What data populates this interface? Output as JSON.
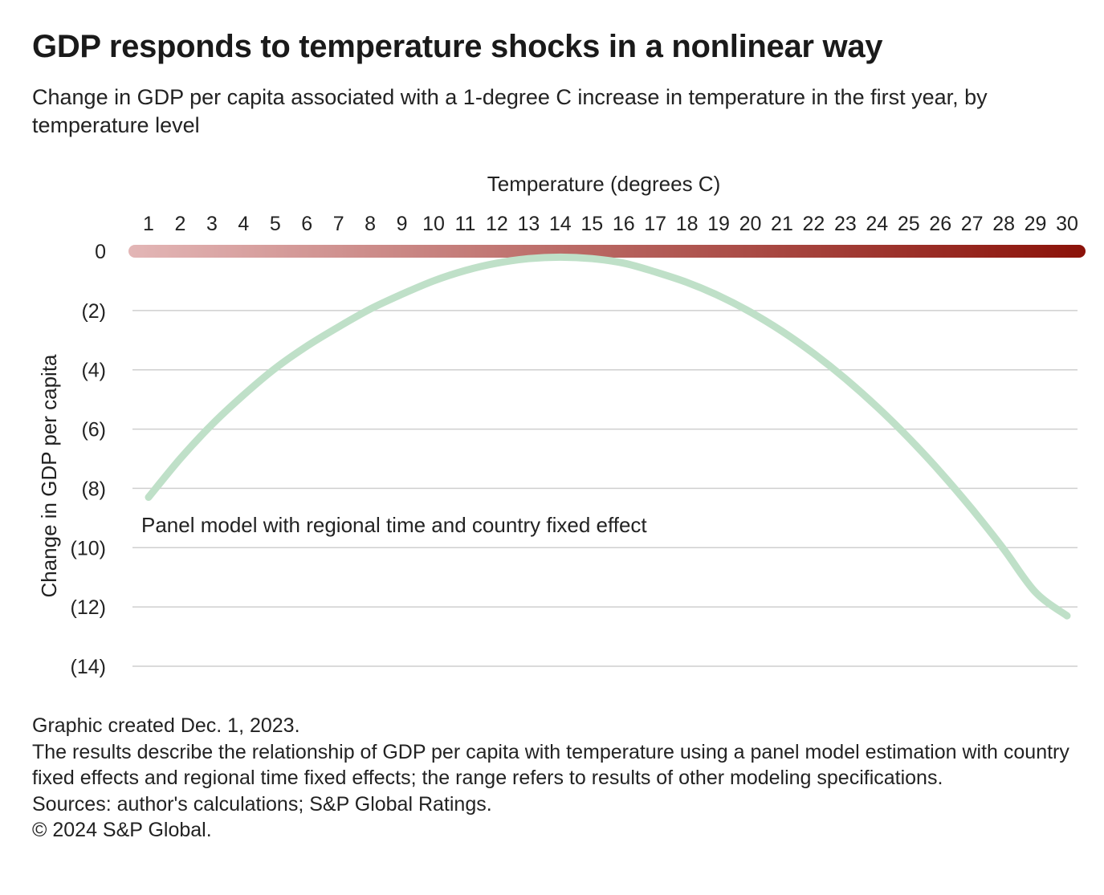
{
  "title": "GDP responds to temperature shocks in a nonlinear way",
  "subtitle": "Change in GDP per capita associated with a 1-degree C increase in temperature in the first year, by temperature level",
  "chart_data": {
    "type": "line",
    "title": "GDP responds to temperature shocks in a nonlinear way",
    "subtitle": "Change in GDP per capita associated with a 1-degree C increase in temperature in the first year, by temperature level",
    "xlabel": "Temperature (degrees C)",
    "ylabel": "Change in GDP per capita",
    "x_ticks": [
      1,
      2,
      3,
      4,
      5,
      6,
      7,
      8,
      9,
      10,
      11,
      12,
      13,
      14,
      15,
      16,
      17,
      18,
      19,
      20,
      21,
      22,
      23,
      24,
      25,
      26,
      27,
      28,
      29,
      30
    ],
    "xlim": [
      1,
      30
    ],
    "y_ticks": [
      0,
      -2,
      -4,
      -6,
      -8,
      -10,
      -12,
      -14
    ],
    "y_tick_labels": [
      "0",
      "(2)",
      "(4)",
      "(6)",
      "(8)",
      "(10)",
      "(12)",
      "(14)"
    ],
    "ylim": [
      -14,
      0
    ],
    "x_axis_position": "top",
    "grid": true,
    "temperature_scale_colors": [
      "#e3b6b6",
      "#8b1209"
    ],
    "series": [
      {
        "name": "Panel model with regional time and country fixed effect",
        "color": "#bfe0c8",
        "x": [
          1,
          2,
          3,
          4,
          5,
          6,
          7,
          8,
          9,
          10,
          11,
          12,
          13,
          14,
          15,
          16,
          17,
          18,
          19,
          20,
          21,
          22,
          23,
          24,
          25,
          26,
          27,
          28,
          29,
          30
        ],
        "y": [
          -8.3,
          -7.0,
          -5.85,
          -4.85,
          -3.95,
          -3.2,
          -2.55,
          -1.95,
          -1.45,
          -1.0,
          -0.65,
          -0.4,
          -0.25,
          -0.2,
          -0.25,
          -0.4,
          -0.7,
          -1.05,
          -1.5,
          -2.05,
          -2.7,
          -3.45,
          -4.3,
          -5.25,
          -6.3,
          -7.45,
          -8.7,
          -10.05,
          -11.5,
          -12.3
        ]
      }
    ]
  },
  "footer": {
    "created": "Graphic created Dec. 1, 2023.",
    "note": "The results describe the relationship of GDP per capita with temperature using a panel model estimation with country fixed effects and regional time fixed effects; the range refers to results of other modeling specifications.",
    "sources": "Sources: author's calculations; S&P Global Ratings.",
    "copyright": "© 2024 S&P Global."
  }
}
